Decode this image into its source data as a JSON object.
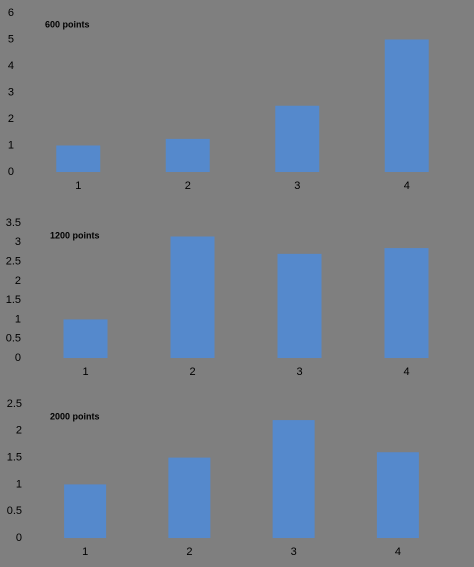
{
  "chart_data": [
    {
      "type": "bar",
      "title": "600 points",
      "categories": [
        "1",
        "2",
        "3",
        "4"
      ],
      "values": [
        1,
        1.25,
        2.5,
        5
      ],
      "color": "#5589cc",
      "ylim": [
        0,
        6
      ],
      "yticks": [
        0,
        1,
        2,
        3,
        4,
        5,
        6
      ]
    },
    {
      "type": "bar",
      "title": "1200 points",
      "categories": [
        "1",
        "2",
        "3",
        "4"
      ],
      "values": [
        1,
        3.15,
        2.7,
        2.85
      ],
      "color": "#5589cc",
      "ylim": [
        0,
        3.5
      ],
      "yticks": [
        0,
        0.5,
        1,
        1.5,
        2,
        2.5,
        3,
        3.5
      ]
    },
    {
      "type": "bar",
      "title": "2000 points",
      "categories": [
        "1",
        "2",
        "3",
        "4"
      ],
      "values": [
        1,
        1.5,
        2.2,
        1.6
      ],
      "color": "#5589cc",
      "ylim": [
        0,
        2.5
      ],
      "yticks": [
        0,
        0.5,
        1,
        1.5,
        2,
        2.5
      ]
    }
  ]
}
